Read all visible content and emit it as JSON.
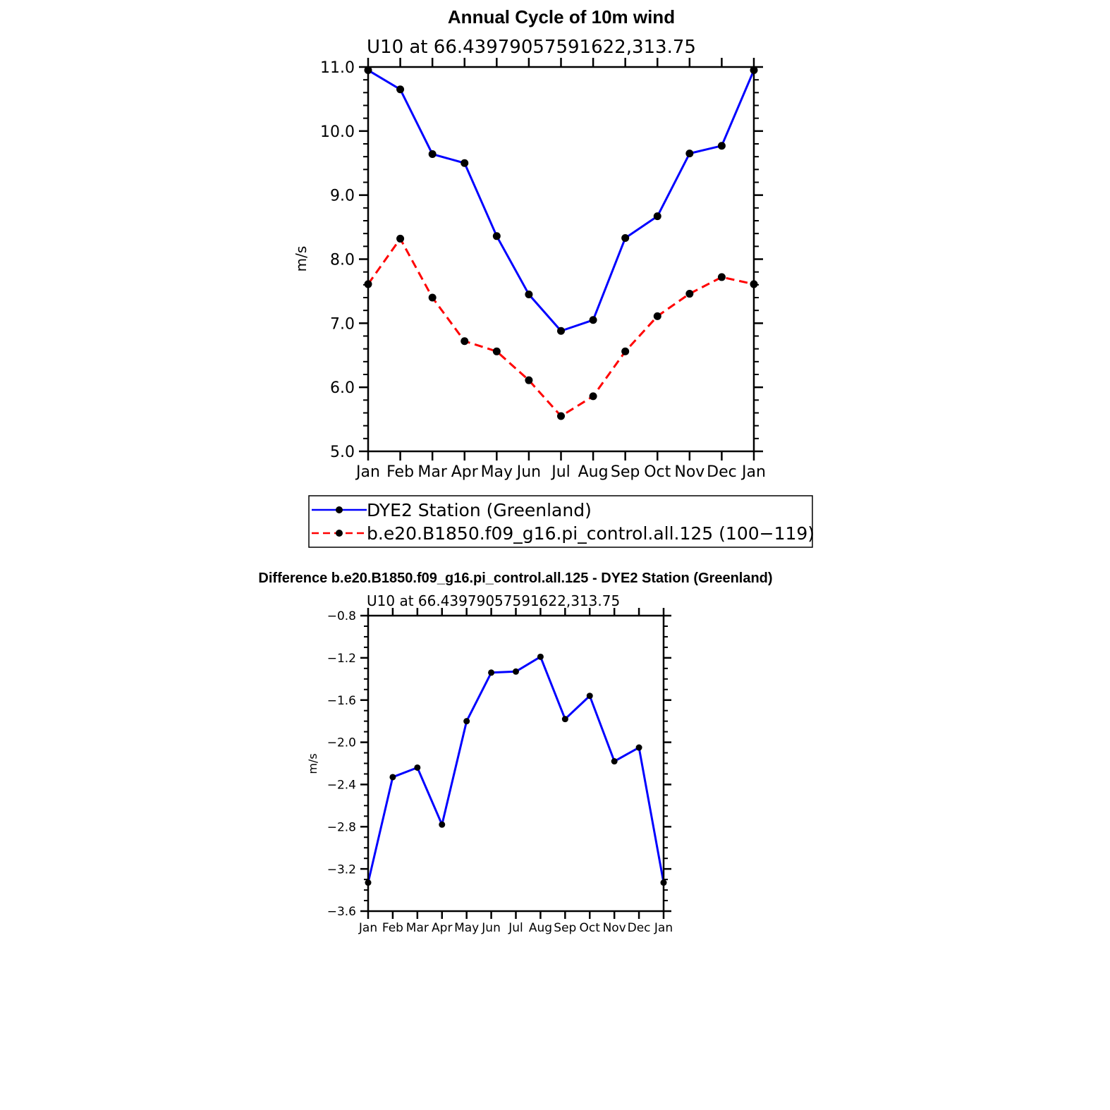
{
  "chart_data": [
    {
      "type": "line",
      "title": "Annual Cycle of 10m wind",
      "subtitle": "U10 at 66.43979057591622,313.75",
      "ylabel": "m/s",
      "categories": [
        "Jan",
        "Feb",
        "Mar",
        "Apr",
        "May",
        "Jun",
        "Jul",
        "Aug",
        "Sep",
        "Oct",
        "Nov",
        "Dec",
        "Jan"
      ],
      "ylim": [
        5.0,
        11.0
      ],
      "yticks": [
        "5.0",
        "6.0",
        "7.0",
        "8.0",
        "9.0",
        "10.0",
        "11.0"
      ],
      "legend_position": "bottom",
      "series": [
        {
          "name": "DYE2 Station (Greenland)",
          "color": "#0000ff",
          "style": "solid",
          "values": [
            10.95,
            10.65,
            9.64,
            9.5,
            8.36,
            7.45,
            6.88,
            7.05,
            8.33,
            8.67,
            9.65,
            9.77,
            10.95
          ]
        },
        {
          "name": "b.e20.B1850.f09_g16.pi_control.all.125 (100−119)",
          "color": "#ff0000",
          "style": "dashed",
          "values": [
            7.61,
            8.32,
            7.4,
            6.72,
            6.56,
            6.11,
            5.55,
            5.86,
            6.56,
            7.11,
            7.46,
            7.72,
            7.61
          ]
        }
      ]
    },
    {
      "type": "line",
      "title": "Difference b.e20.B1850.f09_g16.pi_control.all.125 - DYE2 Station (Greenland)",
      "subtitle": "U10 at 66.43979057591622,313.75",
      "ylabel": "m/s",
      "categories": [
        "Jan",
        "Feb",
        "Mar",
        "Apr",
        "May",
        "Jun",
        "Jul",
        "Aug",
        "Sep",
        "Oct",
        "Nov",
        "Dec",
        "Jan"
      ],
      "ylim": [
        -3.6,
        -0.8
      ],
      "yticks": [
        "−3.6",
        "−3.2",
        "−2.8",
        "−2.4",
        "−2.0",
        "−1.6",
        "−1.2",
        "−0.8"
      ],
      "series": [
        {
          "color": "#0000ff",
          "style": "solid",
          "values": [
            -3.33,
            -2.33,
            -2.24,
            -2.78,
            -1.8,
            -1.34,
            -1.33,
            -1.19,
            -1.78,
            -1.56,
            -2.18,
            -2.05,
            -3.33
          ]
        }
      ]
    }
  ]
}
